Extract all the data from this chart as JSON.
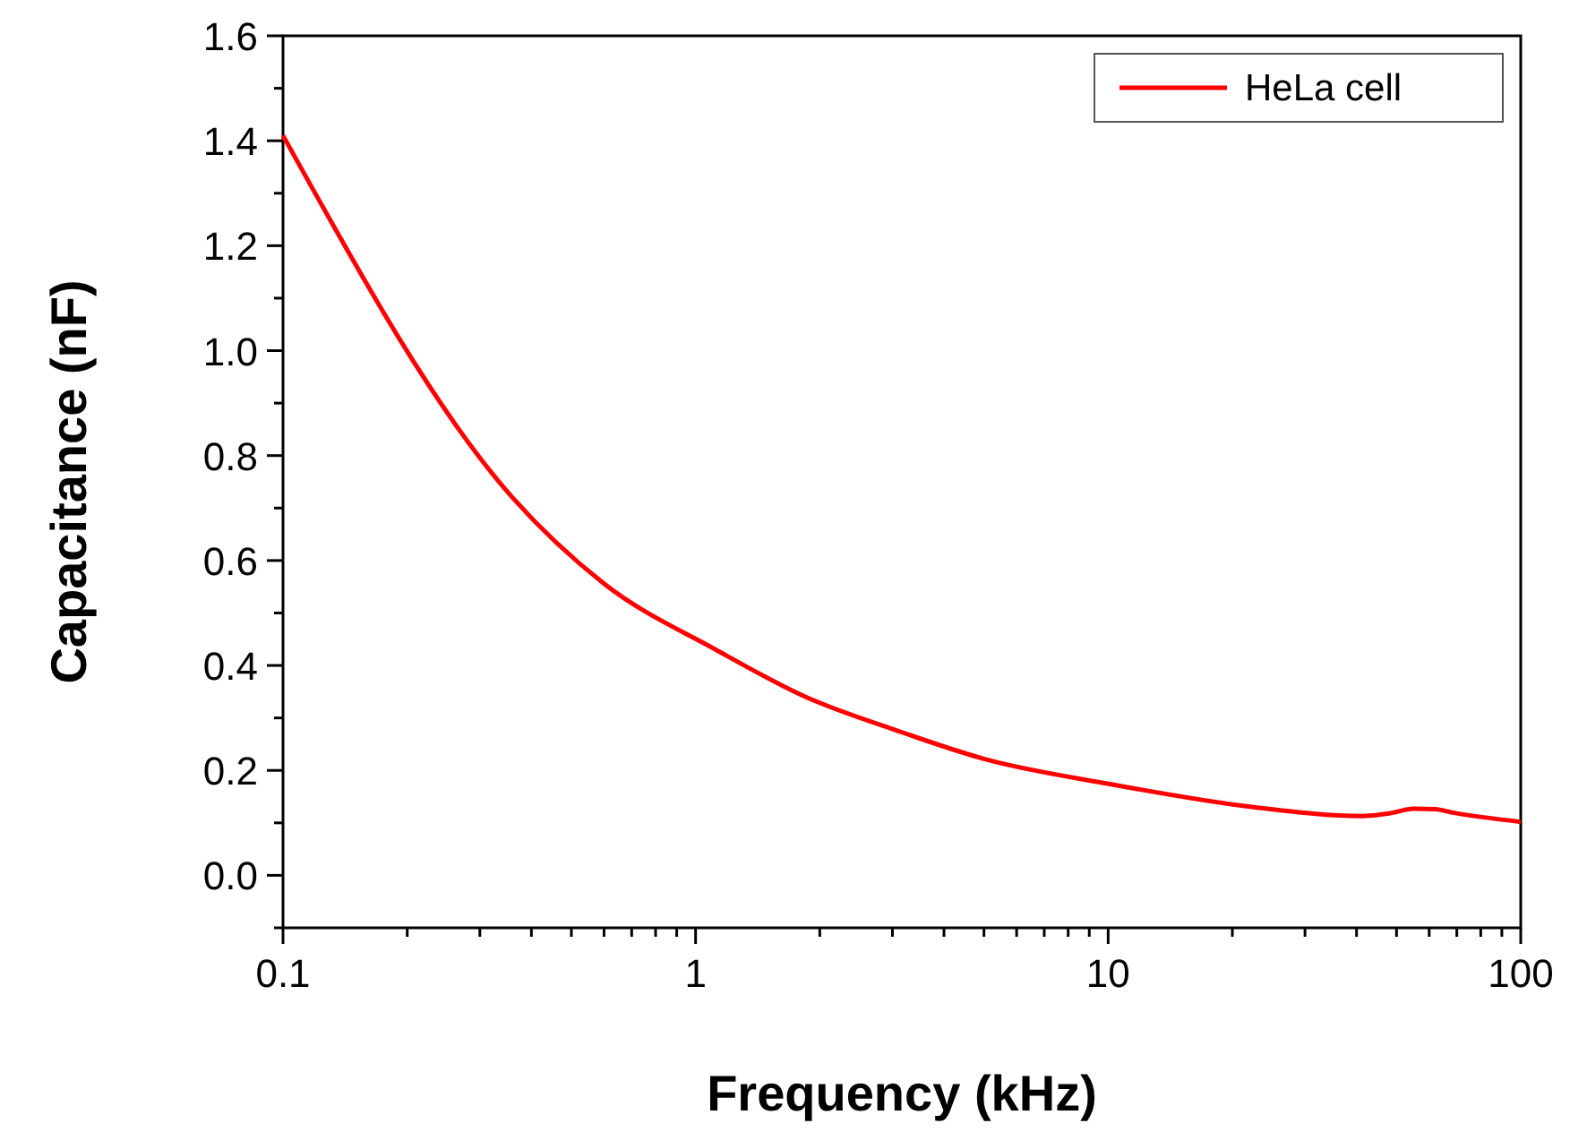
{
  "chart_data": {
    "type": "line",
    "xlabel": "Frequency (kHz)",
    "ylabel": "Capacitance (nF)",
    "log": "x",
    "xlim": [
      0.1,
      100
    ],
    "ylim": [
      -0.1,
      1.6
    ],
    "xticks": [
      0.1,
      {
        "value": 0.2,
        "label": null
      },
      {
        "value": 0.3,
        "label": null
      },
      {
        "value": 0.4,
        "label": null
      },
      {
        "value": 0.5,
        "label": null
      },
      {
        "value": 0.6,
        "label": null
      },
      {
        "value": 0.7,
        "label": null
      },
      {
        "value": 0.8,
        "label": null
      },
      {
        "value": 0.9,
        "label": null
      },
      1,
      {
        "value": 2,
        "label": null
      },
      {
        "value": 3,
        "label": null
      },
      {
        "value": 4,
        "label": null
      },
      {
        "value": 5,
        "label": null
      },
      {
        "value": 6,
        "label": null
      },
      {
        "value": 7,
        "label": null
      },
      {
        "value": 8,
        "label": null
      },
      {
        "value": 9,
        "label": null
      },
      10,
      {
        "value": 20,
        "label": null
      },
      {
        "value": 30,
        "label": null
      },
      {
        "value": 40,
        "label": null
      },
      {
        "value": 50,
        "label": null
      },
      {
        "value": 60,
        "label": null
      },
      {
        "value": 70,
        "label": null
      },
      {
        "value": 80,
        "label": null
      },
      {
        "value": 90,
        "label": null
      },
      100
    ],
    "yticks": [
      {
        "value": -0.1,
        "label": null
      },
      {
        "value": 0,
        "label": "0.0"
      },
      {
        "value": 0.1,
        "label": null
      },
      0.2,
      {
        "value": 0.3,
        "label": null
      },
      0.4,
      {
        "value": 0.5,
        "label": null
      },
      0.6,
      {
        "value": 0.7,
        "label": null
      },
      0.8,
      {
        "value": 0.9,
        "label": null
      },
      {
        "value": 1,
        "label": "1.0"
      },
      {
        "value": 1.1,
        "label": null
      },
      1.2,
      {
        "value": 1.3,
        "label": null
      },
      1.4,
      {
        "value": 1.5,
        "label": null
      },
      1.6
    ],
    "grid": false,
    "legend": "top right",
    "marker": "none",
    "line_style": "solid",
    "series": [
      {
        "name": "HeLa cell",
        "color": "#ff0000",
        "x": [
          0.1,
          0.36,
          0.6,
          1.12,
          1.85,
          3.05,
          5.0,
          10.1,
          22.5,
          41,
          48,
          55,
          62,
          68,
          100
        ],
        "values": [
          1.41,
          0.72,
          0.556,
          0.43,
          0.34,
          0.277,
          0.222,
          0.174,
          0.13,
          0.113,
          0.118,
          0.127,
          0.126,
          0.12,
          0.102
        ]
      }
    ]
  }
}
